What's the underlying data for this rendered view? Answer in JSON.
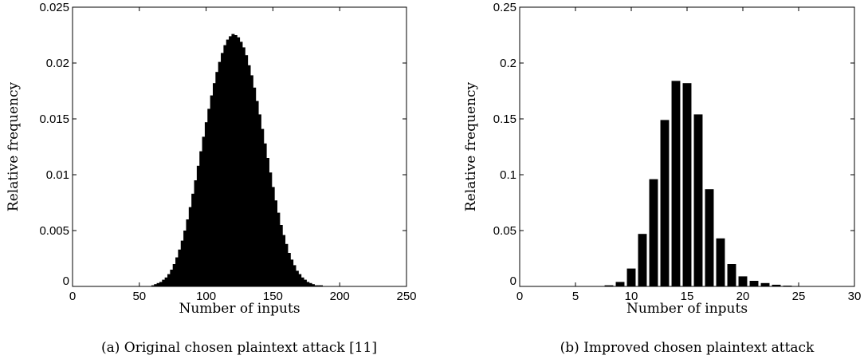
{
  "chart_data": [
    {
      "type": "bar",
      "subtype": "histogram",
      "caption": "(a) Original chosen plaintext attack [11]",
      "xlabel": "Number of inputs",
      "ylabel": "Relative frequency",
      "xlim": [
        0,
        250
      ],
      "ylim": [
        0,
        0.025
      ],
      "xticks": [
        0,
        50,
        100,
        150,
        200,
        250
      ],
      "yticks": [
        0,
        0.005,
        0.01,
        0.015,
        0.02,
        0.025
      ],
      "ytick_labels": [
        "0",
        "0.005",
        "0.01",
        "0.015",
        "0.02",
        "0.025"
      ],
      "grid": false,
      "bar_color": "#000000",
      "x": [
        60,
        62,
        64,
        66,
        68,
        70,
        72,
        74,
        76,
        78,
        80,
        82,
        84,
        86,
        88,
        90,
        92,
        94,
        96,
        98,
        100,
        102,
        104,
        106,
        108,
        110,
        112,
        114,
        116,
        118,
        120,
        122,
        124,
        126,
        128,
        130,
        132,
        134,
        136,
        138,
        140,
        142,
        144,
        146,
        148,
        150,
        152,
        154,
        156,
        158,
        160,
        162,
        164,
        166,
        168,
        170,
        172,
        174,
        176,
        178,
        180,
        182,
        184,
        186,
        188,
        190,
        192,
        194
      ],
      "values": [
        0.0001,
        0.0002,
        0.0003,
        0.0004,
        0.0006,
        0.0008,
        0.0011,
        0.0015,
        0.002,
        0.0026,
        0.0033,
        0.0041,
        0.005,
        0.006,
        0.0071,
        0.0083,
        0.0095,
        0.0108,
        0.0121,
        0.0134,
        0.0147,
        0.0159,
        0.0171,
        0.0182,
        0.0192,
        0.0201,
        0.0209,
        0.0216,
        0.0221,
        0.0224,
        0.0226,
        0.0225,
        0.0223,
        0.0219,
        0.0214,
        0.0207,
        0.0198,
        0.0189,
        0.0178,
        0.0166,
        0.0154,
        0.0141,
        0.0128,
        0.0115,
        0.0102,
        0.0089,
        0.0077,
        0.0066,
        0.0055,
        0.0046,
        0.0038,
        0.003,
        0.0024,
        0.0019,
        0.0014,
        0.0011,
        0.0008,
        0.0006,
        0.0004,
        0.0003,
        0.0002,
        0.0001,
        0.0001,
        0.0001,
        0.0,
        0.0,
        0.0,
        0.0
      ]
    },
    {
      "type": "bar",
      "subtype": "histogram",
      "caption": "(b) Improved chosen plaintext attack",
      "xlabel": "Number of inputs",
      "ylabel": "Relative frequency",
      "xlim": [
        0,
        30
      ],
      "ylim": [
        0,
        0.25
      ],
      "xticks": [
        0,
        5,
        10,
        15,
        20,
        25,
        30
      ],
      "yticks": [
        0,
        0.05,
        0.1,
        0.15,
        0.2,
        0.25
      ],
      "ytick_labels": [
        "0",
        "0.05",
        "0.1",
        "0.15",
        "0.2",
        "0.25"
      ],
      "grid": false,
      "bar_color": "#000000",
      "x": [
        7,
        8,
        9,
        10,
        11,
        12,
        13,
        14,
        15,
        16,
        17,
        18,
        19,
        20,
        21,
        22,
        23,
        24,
        25
      ],
      "values": [
        0.0003,
        0.001,
        0.004,
        0.016,
        0.047,
        0.096,
        0.149,
        0.184,
        0.182,
        0.154,
        0.087,
        0.043,
        0.02,
        0.009,
        0.005,
        0.003,
        0.0015,
        0.0007,
        0.0003
      ]
    }
  ]
}
